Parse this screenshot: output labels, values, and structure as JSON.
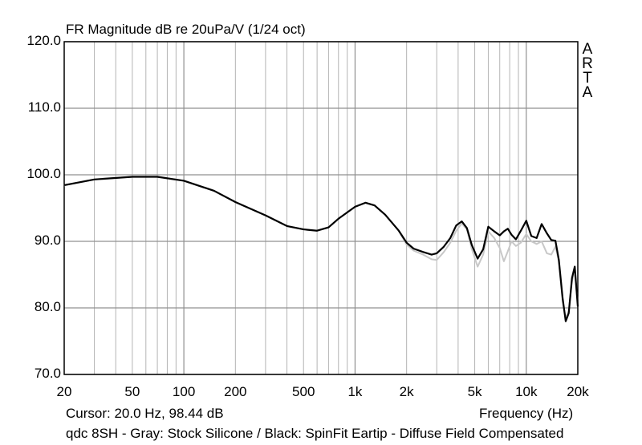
{
  "chart_data": {
    "type": "line",
    "title": "FR Magnitude dB re 20uPa/V (1/24 oct)",
    "xlabel": "Frequency (Hz)",
    "ylabel": "",
    "x_scale": "log",
    "xlim": [
      20,
      20000
    ],
    "ylim": [
      70,
      120
    ],
    "grid": true,
    "yticks": [
      "120.0",
      "110.0",
      "100.0",
      "90.0",
      "80.0",
      "70.0"
    ],
    "xticks": [
      {
        "value": 20,
        "label": "20"
      },
      {
        "value": 50,
        "label": "50"
      },
      {
        "value": 100,
        "label": "100"
      },
      {
        "value": 200,
        "label": "200"
      },
      {
        "value": 500,
        "label": "500"
      },
      {
        "value": 1000,
        "label": "1k"
      },
      {
        "value": 2000,
        "label": "2k"
      },
      {
        "value": 5000,
        "label": "5k"
      },
      {
        "value": 10000,
        "label": "10k"
      },
      {
        "value": 20000,
        "label": "20k"
      }
    ],
    "series": [
      {
        "color": "#c8c8c8",
        "points": [
          [
            20,
            98.4
          ],
          [
            30,
            99.3
          ],
          [
            50,
            99.7
          ],
          [
            70,
            99.7
          ],
          [
            100,
            99.1
          ],
          [
            150,
            97.6
          ],
          [
            200,
            95.9
          ],
          [
            300,
            93.9
          ],
          [
            400,
            92.3
          ],
          [
            500,
            91.8
          ],
          [
            600,
            91.6
          ],
          [
            700,
            92.1
          ],
          [
            800,
            93.4
          ],
          [
            1000,
            95.2
          ],
          [
            1150,
            95.8
          ],
          [
            1300,
            95.4
          ],
          [
            1500,
            94.0
          ],
          [
            1800,
            91.6
          ],
          [
            2000,
            89.5
          ],
          [
            2200,
            88.6
          ],
          [
            2500,
            88.0
          ],
          [
            2800,
            87.3
          ],
          [
            3000,
            87.2
          ],
          [
            3300,
            88.4
          ],
          [
            3600,
            89.8
          ],
          [
            3900,
            91.6
          ],
          [
            4200,
            92.7
          ],
          [
            4500,
            91.8
          ],
          [
            4800,
            88.9
          ],
          [
            5200,
            86.2
          ],
          [
            5600,
            88.0
          ],
          [
            6000,
            91.5
          ],
          [
            6500,
            90.5
          ],
          [
            7000,
            89.0
          ],
          [
            7400,
            87.0
          ],
          [
            7800,
            88.5
          ],
          [
            8200,
            90.0
          ],
          [
            8700,
            89.3
          ],
          [
            9300,
            89.8
          ],
          [
            10000,
            91.1
          ],
          [
            10700,
            90.0
          ],
          [
            11500,
            89.6
          ],
          [
            12300,
            90.0
          ],
          [
            13200,
            88.2
          ],
          [
            14000,
            88.0
          ],
          [
            14800,
            89.2
          ],
          [
            15500,
            87.0
          ],
          [
            16300,
            81.0
          ],
          [
            17000,
            78.5
          ],
          [
            17700,
            79.5
          ],
          [
            18500,
            84.0
          ],
          [
            19200,
            85.5
          ],
          [
            20000,
            80.5
          ]
        ]
      },
      {
        "color": "#000000",
        "points": [
          [
            20,
            98.44
          ],
          [
            30,
            99.3
          ],
          [
            50,
            99.7
          ],
          [
            70,
            99.7
          ],
          [
            100,
            99.1
          ],
          [
            150,
            97.6
          ],
          [
            200,
            95.9
          ],
          [
            300,
            93.9
          ],
          [
            400,
            92.3
          ],
          [
            500,
            91.8
          ],
          [
            600,
            91.6
          ],
          [
            700,
            92.1
          ],
          [
            800,
            93.4
          ],
          [
            1000,
            95.2
          ],
          [
            1150,
            95.8
          ],
          [
            1300,
            95.4
          ],
          [
            1500,
            94.0
          ],
          [
            1800,
            91.6
          ],
          [
            2000,
            89.8
          ],
          [
            2200,
            88.9
          ],
          [
            2500,
            88.4
          ],
          [
            2800,
            88.0
          ],
          [
            3000,
            88.2
          ],
          [
            3300,
            89.2
          ],
          [
            3600,
            90.5
          ],
          [
            3900,
            92.4
          ],
          [
            4200,
            93.0
          ],
          [
            4500,
            92.0
          ],
          [
            4800,
            89.5
          ],
          [
            5200,
            87.4
          ],
          [
            5600,
            88.8
          ],
          [
            6000,
            92.2
          ],
          [
            6500,
            91.5
          ],
          [
            7000,
            90.9
          ],
          [
            7400,
            91.5
          ],
          [
            7800,
            91.9
          ],
          [
            8200,
            91.0
          ],
          [
            8700,
            90.3
          ],
          [
            9300,
            91.6
          ],
          [
            10000,
            93.1
          ],
          [
            10700,
            90.8
          ],
          [
            11500,
            90.5
          ],
          [
            12300,
            92.6
          ],
          [
            13200,
            91.2
          ],
          [
            14000,
            90.2
          ],
          [
            14800,
            90.1
          ],
          [
            15500,
            87.2
          ],
          [
            16300,
            81.5
          ],
          [
            17000,
            78.0
          ],
          [
            17700,
            79.2
          ],
          [
            18500,
            84.5
          ],
          [
            19200,
            86.2
          ],
          [
            20000,
            80.2
          ]
        ]
      }
    ]
  },
  "brand": [
    "A",
    "R",
    "T",
    "A"
  ],
  "cursor_readout": "Cursor: 20.0 Hz, 98.44 dB",
  "caption": "qdc 8SH - Gray: Stock Silicone / Black: SpinFit Eartip - Diffuse Field Compensated"
}
